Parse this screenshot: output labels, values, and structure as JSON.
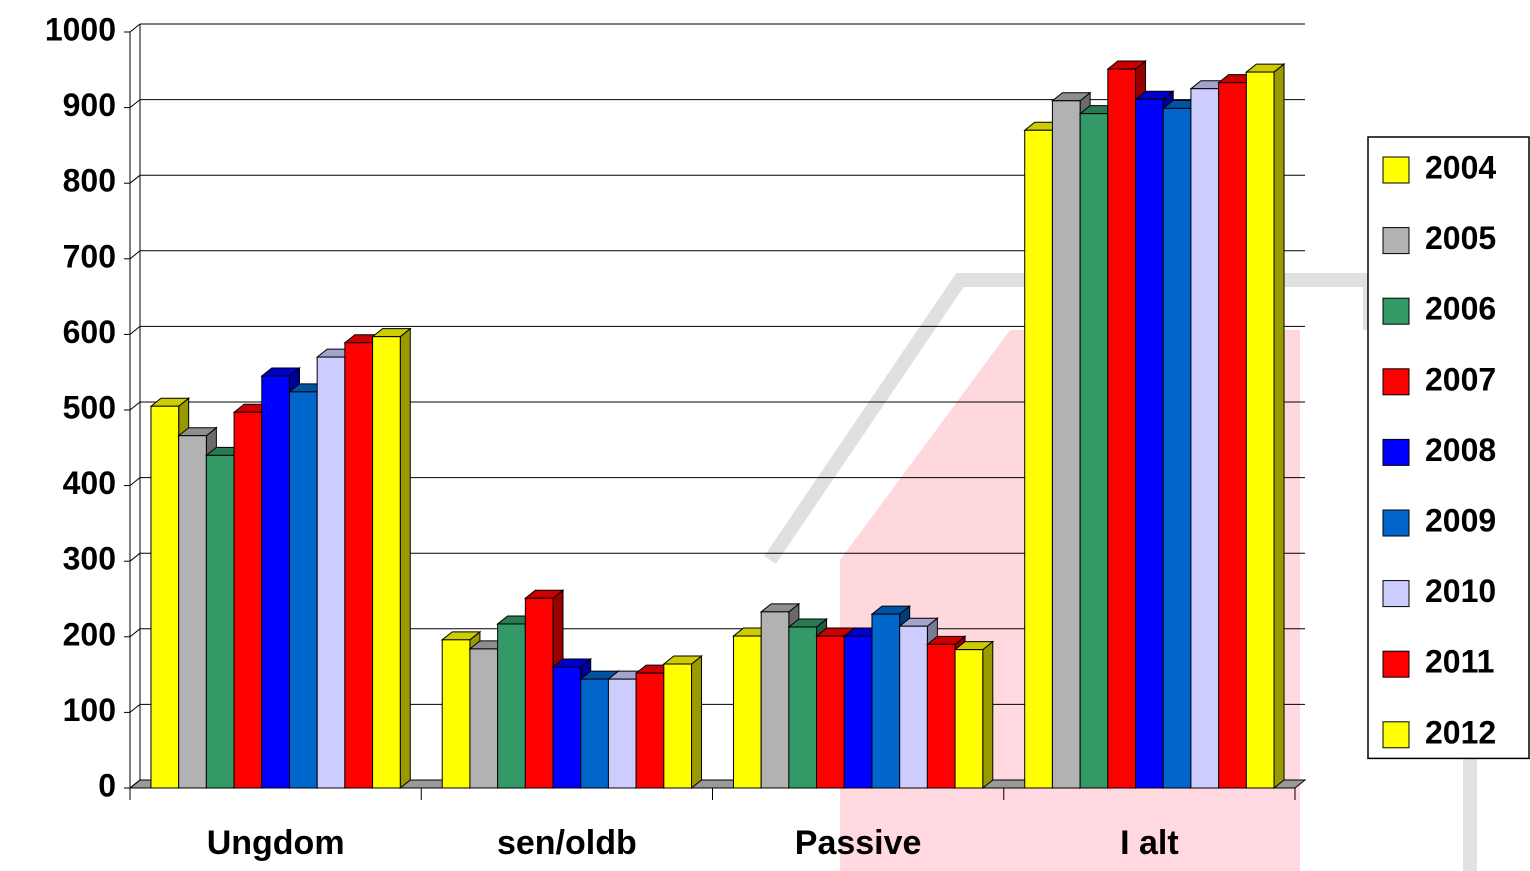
{
  "chart_data": {
    "type": "bar3d",
    "categories": [
      "Ungdom",
      "sen/oldb",
      "Passive",
      "I alt"
    ],
    "series": [
      {
        "name": "2004",
        "color": "#ffff00",
        "values": [
          505,
          196,
          201,
          870
        ]
      },
      {
        "name": "2005",
        "color": "#b2b2b2",
        "values": [
          466,
          184,
          233,
          909
        ]
      },
      {
        "name": "2006",
        "color": "#339966",
        "values": [
          440,
          217,
          213,
          892
        ]
      },
      {
        "name": "2007",
        "color": "#ff0000",
        "values": [
          497,
          251,
          201,
          951
        ]
      },
      {
        "name": "2008",
        "color": "#0000ff",
        "values": [
          545,
          160,
          201,
          911
        ]
      },
      {
        "name": "2009",
        "color": "#0066cc",
        "values": [
          524,
          144,
          230,
          899
        ]
      },
      {
        "name": "2010",
        "color": "#ccccff",
        "values": [
          570,
          144,
          214,
          925
        ]
      },
      {
        "name": "2011",
        "color": "#ff0000",
        "values": [
          589,
          152,
          190,
          933
        ]
      },
      {
        "name": "2012",
        "color": "#ffff00",
        "values": [
          597,
          164,
          183,
          947
        ]
      }
    ],
    "ylim": [
      0,
      1000
    ],
    "yticks": [
      0,
      100,
      200,
      300,
      400,
      500,
      600,
      700,
      800,
      900,
      1000
    ],
    "grid": true,
    "legend": "right"
  }
}
